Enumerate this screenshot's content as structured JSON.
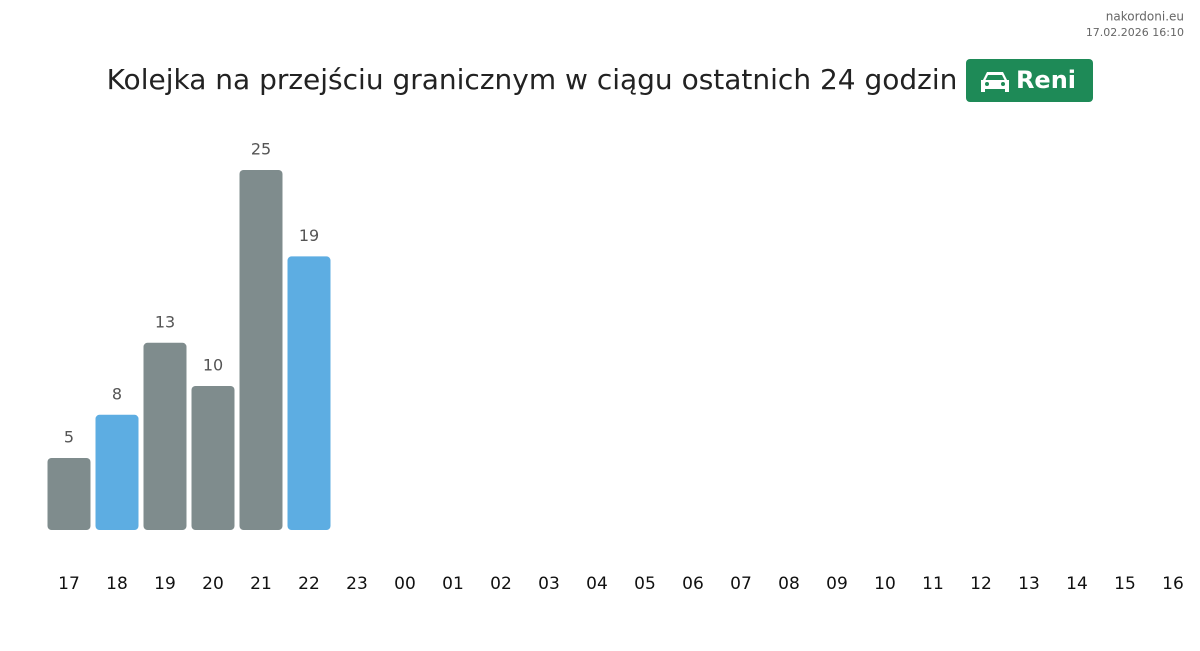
{
  "chart_data": {
    "type": "bar",
    "title": "Kolejka na przejściu granicznym w ciągu ostatnich 24 godzin",
    "badge": "Reni",
    "source": "nakordoni.eu",
    "timestamp": "17.02.2026 16:10",
    "categories": [
      "17",
      "18",
      "19",
      "20",
      "21",
      "22",
      "23",
      "00",
      "01",
      "02",
      "03",
      "04",
      "05",
      "06",
      "07",
      "08",
      "09",
      "10",
      "11",
      "12",
      "13",
      "14",
      "15",
      "16"
    ],
    "values": [
      5,
      8,
      13,
      10,
      25,
      19,
      null,
      null,
      null,
      null,
      null,
      null,
      null,
      null,
      null,
      null,
      null,
      null,
      null,
      null,
      null,
      null,
      null,
      null
    ],
    "colors": [
      "#7f8c8d",
      "#5dade2",
      "#7f8c8d",
      "#7f8c8d",
      "#7f8c8d",
      "#5dade2",
      null,
      null,
      null,
      null,
      null,
      null,
      null,
      null,
      null,
      null,
      null,
      null,
      null,
      null,
      null,
      null,
      null,
      null
    ]
  }
}
